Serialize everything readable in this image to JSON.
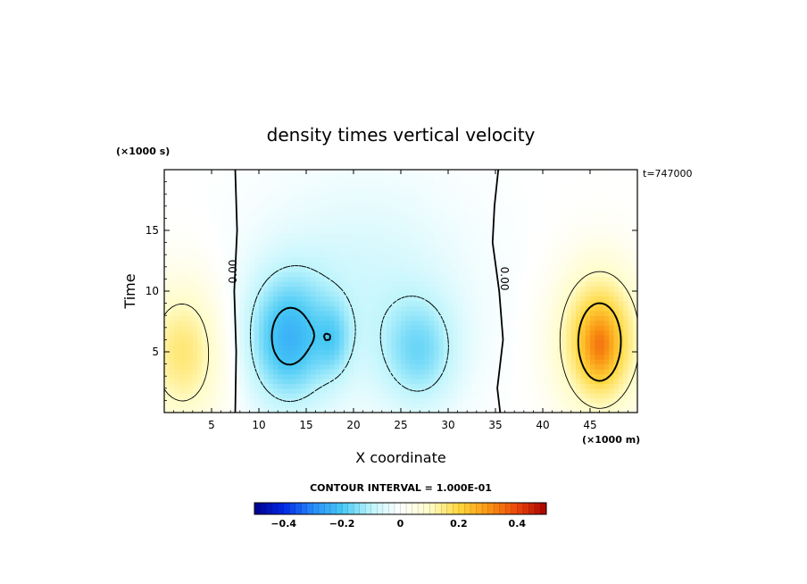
{
  "chart_data": {
    "type": "heatmap",
    "title": "density times vertical velocity",
    "xlabel": "X coordinate",
    "ylabel": "Time",
    "x_unit": "(×1000 m)",
    "y_unit": "(×1000 s)",
    "time_stamp": "t=747000",
    "xlim": [
      0,
      50
    ],
    "ylim": [
      0,
      20
    ],
    "x_ticks": [
      5,
      10,
      15,
      20,
      25,
      30,
      35,
      40,
      45
    ],
    "y_ticks": [
      5,
      10,
      15
    ],
    "contour_interval_label": "CONTOUR INTERVAL = 1.000E-01",
    "contour_line_label": "0.00",
    "colorbar": {
      "min": -0.5,
      "max": 0.5,
      "tick_values": [
        -0.4,
        -0.2,
        0,
        0.2,
        0.4
      ],
      "tick_labels": [
        "−0.4",
        "−0.2",
        "0",
        "0.2",
        "0.4"
      ]
    },
    "features": [
      {
        "name": "upward-left",
        "x": 2,
        "y": 5,
        "sx": 4.5,
        "sy": 6,
        "amp": 0.16
      },
      {
        "name": "downward-main",
        "x": 13,
        "y": 6,
        "sx": 4.5,
        "sy": 5.5,
        "amp": -0.2
      },
      {
        "name": "downward-secondary",
        "x": 18,
        "y": 6,
        "sx": 1.8,
        "sy": 3,
        "amp": -0.08
      },
      {
        "name": "downward-broad",
        "x": 21,
        "y": 10,
        "sx": 11,
        "sy": 9,
        "amp": -0.07
      },
      {
        "name": "downward-centre",
        "x": 27,
        "y": 5,
        "sx": 4,
        "sy": 4.5,
        "amp": -0.13
      },
      {
        "name": "upward-right",
        "x": 46,
        "y": 6,
        "sx": 4.5,
        "sy": 6,
        "amp": 0.24
      },
      {
        "name": "upward-right-peak",
        "x": 46,
        "y": 5.5,
        "sx": 1.6,
        "sy": 2.5,
        "amp": 0.1
      }
    ]
  }
}
